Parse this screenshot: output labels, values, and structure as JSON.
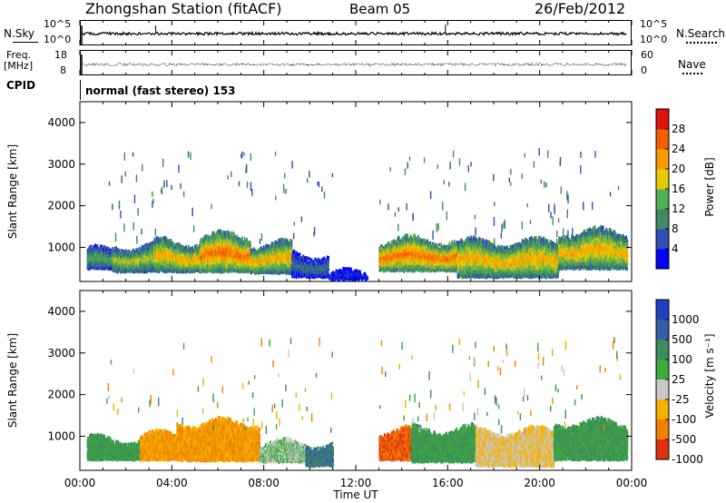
{
  "header": {
    "station": "Zhongshan Station (fitACF)",
    "beam": "Beam 05",
    "date": "26/Feb/2012"
  },
  "nsky_panel": {
    "left_label": "N.Sky",
    "right_label": "N.Search",
    "ticks_top": "10^5",
    "ticks_bottom": "10^0"
  },
  "freq_panel": {
    "left_label_line1": "Freq.",
    "left_label_line2": "[MHz]",
    "right_label": "Nave",
    "left_tick_top": "18",
    "left_tick_bottom": "8",
    "right_tick_top": "60",
    "right_tick_bottom": "0"
  },
  "cpid_panel": {
    "label": "CPID",
    "text": "normal (fast stereo) 153"
  },
  "x_axis": {
    "title": "Time UT",
    "tick_labels": [
      "00:00",
      "04:00",
      "08:00",
      "12:00",
      "16:00",
      "20:00",
      "00:00"
    ]
  },
  "power_panel": {
    "ylabel": "Slant Range [km]",
    "y_ticks": [
      "1000",
      "2000",
      "3000",
      "4000"
    ],
    "colorbar_label": "Power [dB]",
    "colorbar_ticks": [
      "4",
      "8",
      "12",
      "16",
      "20",
      "24",
      "28"
    ],
    "colors": [
      "#0000ff",
      "#2e4fb3",
      "#3f8a61",
      "#55b055",
      "#e8c800",
      "#f59a00",
      "#f06000",
      "#e01010"
    ]
  },
  "velocity_panel": {
    "ylabel": "Slant Range [km]",
    "y_ticks": [
      "1000",
      "2000",
      "3000",
      "4000"
    ],
    "colorbar_label": "Velocity [m s⁻¹]",
    "colorbar_ticks": [
      "1000",
      "500",
      "100",
      "25",
      "-25",
      "-100",
      "-500",
      "-1000"
    ],
    "colors": [
      "#2040c0",
      "#3560a8",
      "#3f8a61",
      "#3caa3c",
      "#c8c8c8",
      "#f5b000",
      "#f08000",
      "#e03010"
    ]
  },
  "chart_data": {
    "type": "heatmap",
    "title": "Zhongshan Station (fitACF)",
    "xlabel": "Time UT",
    "ylabel": "Slant Range [km]",
    "xlim": [
      0,
      24
    ],
    "ylim": [
      180,
      4500
    ],
    "series": [
      {
        "name": "Power [dB]",
        "scale": [
          4,
          8,
          12,
          16,
          20,
          24,
          28
        ],
        "regions": [
          {
            "t0": 0.3,
            "t1": 1.4,
            "r0": 450,
            "r1": 900,
            "level": 12
          },
          {
            "t0": 1.4,
            "t1": 3.2,
            "r0": 380,
            "r1": 1000,
            "level": 16
          },
          {
            "t0": 3.2,
            "t1": 5.2,
            "r0": 380,
            "r1": 1100,
            "level": 20
          },
          {
            "t0": 5.2,
            "t1": 7.4,
            "r0": 380,
            "r1": 1250,
            "level": 24
          },
          {
            "t0": 7.4,
            "t1": 9.2,
            "r0": 350,
            "r1": 1050,
            "level": 20
          },
          {
            "t0": 9.2,
            "t1": 10.8,
            "r0": 250,
            "r1": 800,
            "level": 8
          },
          {
            "t0": 10.8,
            "t1": 12.5,
            "r0": 200,
            "r1": 350,
            "level": 4
          },
          {
            "t0": 13.0,
            "t1": 16.4,
            "r0": 400,
            "r1": 1150,
            "level": 24
          },
          {
            "t0": 16.4,
            "t1": 20.8,
            "r0": 250,
            "r1": 1100,
            "level": 20
          },
          {
            "t0": 20.8,
            "t1": 23.8,
            "r0": 450,
            "r1": 1350,
            "level": 20
          }
        ]
      },
      {
        "name": "Velocity [m s⁻¹]",
        "scale": [
          1000,
          500,
          100,
          25,
          -25,
          -100,
          -500,
          -1000
        ],
        "regions": [
          {
            "t0": 0.3,
            "t1": 2.6,
            "r0": 400,
            "r1": 900,
            "level": 100
          },
          {
            "t0": 2.6,
            "t1": 4.2,
            "r0": 400,
            "r1": 1000,
            "level": -100
          },
          {
            "t0": 4.2,
            "t1": 7.8,
            "r0": 380,
            "r1": 1300,
            "level": -100
          },
          {
            "t0": 7.8,
            "t1": 9.8,
            "r0": 350,
            "r1": 800,
            "level": 25
          },
          {
            "t0": 9.8,
            "t1": 11.0,
            "r0": 250,
            "r1": 800,
            "level": 500
          },
          {
            "t0": 13.0,
            "t1": 14.4,
            "r0": 400,
            "r1": 1100,
            "level": -500
          },
          {
            "t0": 14.4,
            "t1": 17.2,
            "r0": 350,
            "r1": 1150,
            "level": 100
          },
          {
            "t0": 17.2,
            "t1": 20.6,
            "r0": 250,
            "r1": 1100,
            "level": -25
          },
          {
            "t0": 20.6,
            "t1": 23.8,
            "r0": 400,
            "r1": 1300,
            "level": 100
          }
        ]
      }
    ]
  }
}
